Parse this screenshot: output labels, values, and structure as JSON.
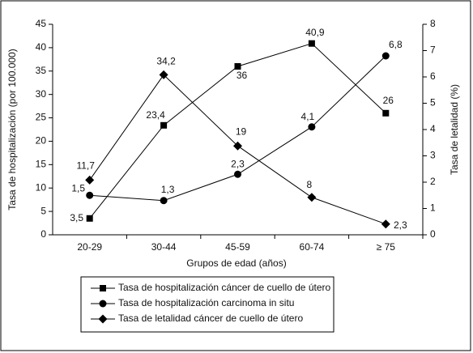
{
  "chart_data": {
    "type": "line",
    "xlabel": "Grupos de edad (años)",
    "ylabel": "Tasa de hospitalización (por 100.000)",
    "y2label": "Tasa de letalidad (%)",
    "categories": [
      "20-29",
      "30-44",
      "45-59",
      "60-74",
      "≥ 75"
    ],
    "ylim": [
      0,
      45
    ],
    "yticks": [
      0,
      5,
      10,
      15,
      20,
      25,
      30,
      35,
      40,
      45
    ],
    "y2lim": [
      0,
      8
    ],
    "y2ticks": [
      0,
      1,
      2,
      3,
      4,
      5,
      6,
      7,
      8
    ],
    "series": [
      {
        "name": "Tasa de hospitalización cáncer de cuello de útero",
        "color": "#000000",
        "marker": "square",
        "values": [
          3.5,
          23.4,
          36,
          40.9,
          26
        ],
        "value_labels": [
          "3,5",
          "23,4",
          "36",
          "40,9",
          "26"
        ]
      },
      {
        "name": "Tasa de hospitalización carcinoma in situ",
        "color": "#000000",
        "marker": "circle",
        "axis": "y2",
        "values": [
          1.5,
          1.3,
          2.3,
          4.1,
          6.8
        ],
        "value_labels": [
          "1,5",
          "1,3",
          "2,3",
          "4,1",
          "6,8"
        ]
      },
      {
        "name": "Tasa de letalidad cáncer de cuello de útero",
        "color": "#000000",
        "marker": "diamond",
        "values": [
          11.7,
          34.2,
          19,
          8,
          2.3
        ],
        "value_labels": [
          "11,7",
          "34,2",
          "19",
          "8",
          "2,3"
        ]
      }
    ]
  }
}
